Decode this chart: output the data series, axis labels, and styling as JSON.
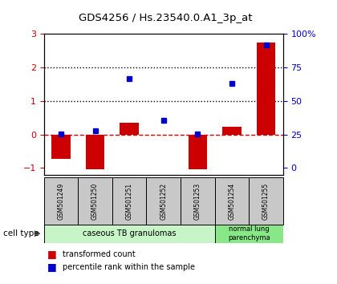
{
  "title": "GDS4256 / Hs.23540.0.A1_3p_at",
  "samples": [
    "GSM501249",
    "GSM501250",
    "GSM501251",
    "GSM501252",
    "GSM501253",
    "GSM501254",
    "GSM501255"
  ],
  "transformed_count": [
    -0.72,
    -1.05,
    0.35,
    -0.02,
    -1.05,
    0.22,
    2.75
  ],
  "percentile_rank": [
    0.02,
    0.12,
    1.68,
    0.42,
    0.02,
    1.52,
    2.68
  ],
  "ylim_left": [
    -1.2,
    3.0
  ],
  "yticks_left": [
    -1,
    0,
    1,
    2,
    3
  ],
  "yticks_right": [
    0,
    25,
    50,
    75,
    100
  ],
  "ytick_labels_right": [
    "0",
    "25",
    "50",
    "75",
    "100%"
  ],
  "cell_types": [
    {
      "label": "caseous TB granulomas",
      "samples_range": [
        0,
        4
      ],
      "color": "#c8f5c8"
    },
    {
      "label": "normal lung\nparenchyma",
      "samples_range": [
        5,
        6
      ],
      "color": "#88e888"
    }
  ],
  "bar_color_red": "#cc0000",
  "bar_color_blue": "#0000cc",
  "hline_color": "#cc0000",
  "dotted_line_color": "#000000",
  "bg_color": "#ffffff",
  "legend_red_label": "transformed count",
  "legend_blue_label": "percentile rank within the sample",
  "cell_type_label": "cell type",
  "tick_box_color": "#c8c8c8",
  "ylabel_left_color": "#cc0000",
  "ylabel_right_color": "#0000cc"
}
